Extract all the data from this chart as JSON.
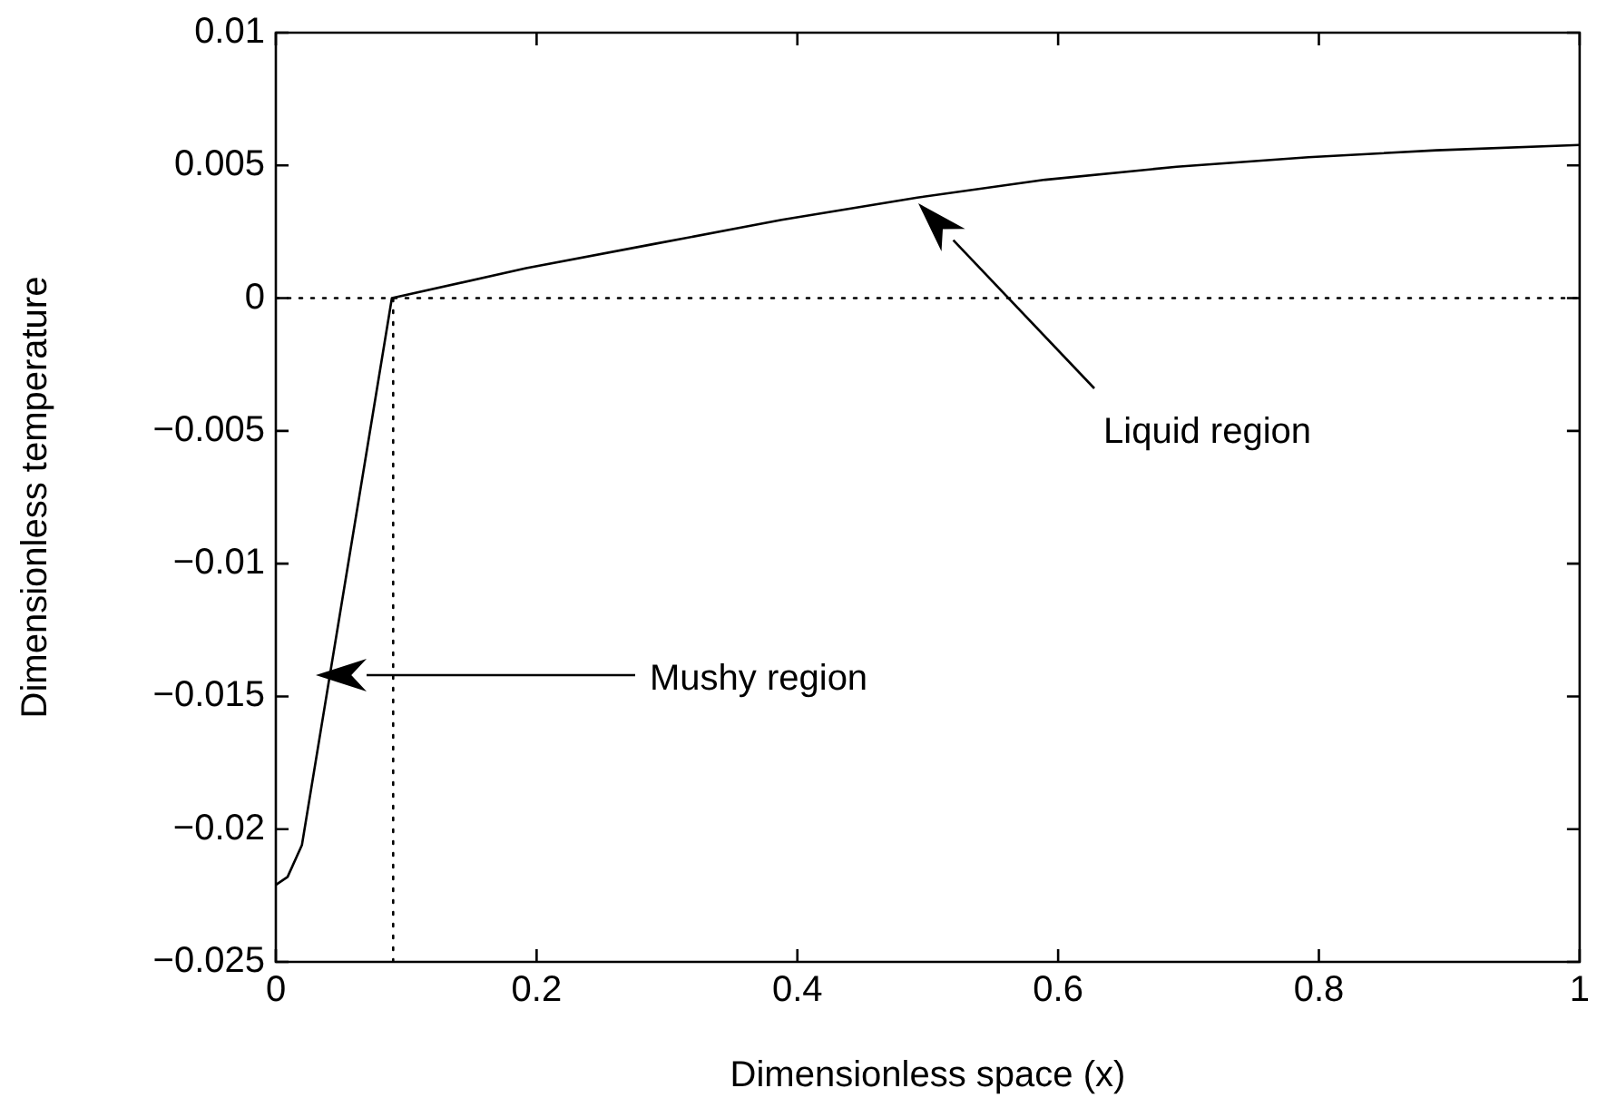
{
  "chart_data": {
    "type": "line",
    "xlabel": "Dimensionless space (x)",
    "ylabel": "Dimensionless temperature",
    "xlim": [
      0,
      1
    ],
    "xticks": [
      0,
      0.2,
      0.4,
      0.6,
      0.8,
      1
    ],
    "ylim": [
      -0.025,
      0.01
    ],
    "yticks": [
      -0.025,
      -0.02,
      -0.015,
      -0.01,
      -0.005,
      0,
      0.005,
      0.01
    ],
    "grid": false,
    "legend": false,
    "marker": "none",
    "series": [
      {
        "color": "#000000",
        "line_style": "solid",
        "x": [
          0,
          0.009,
          0.02,
          0.089,
          0.192,
          0.29,
          0.388,
          0.492,
          0.59,
          0.691,
          0.792,
          0.89,
          1
        ],
        "values": [
          -0.0221,
          -0.0218,
          -0.0206,
          0,
          0.00113,
          0.00204,
          0.00295,
          0.00379,
          0.00446,
          0.00495,
          0.00531,
          0.00557,
          0.00577
        ]
      },
      {
        "color": "#000000",
        "line_style": "dotted",
        "x": [
          0,
          1
        ],
        "values": [
          0,
          0
        ]
      },
      {
        "color": "#000000",
        "line_style": "dotted",
        "x": [
          0.09,
          0.09
        ],
        "values": [
          -0.025,
          0
        ]
      }
    ],
    "annotations": [
      "Liquid region",
      "Mushy region"
    ]
  }
}
